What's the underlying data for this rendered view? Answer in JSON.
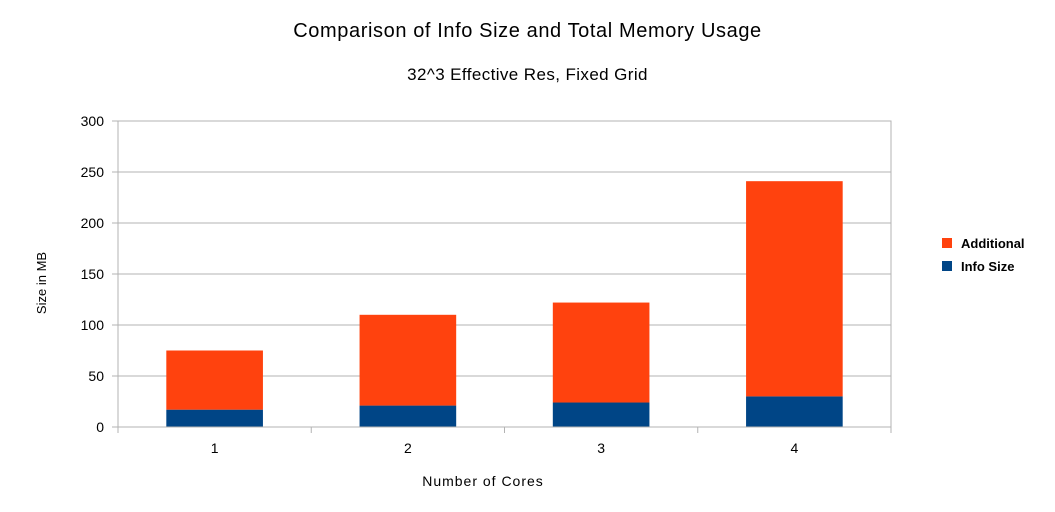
{
  "chart_data": {
    "type": "bar",
    "stacked": true,
    "title": "Comparison of Info Size and Total Memory Usage",
    "subtitle": "32^3 Effective Res, Fixed Grid",
    "xlabel": "Number of Cores",
    "ylabel": "Size in MB",
    "categories": [
      "1",
      "2",
      "3",
      "4"
    ],
    "series": [
      {
        "name": "Info Size",
        "color": "#004586",
        "values": [
          17,
          21,
          24,
          30
        ]
      },
      {
        "name": "Additional",
        "color": "#ff420e",
        "values": [
          58,
          89,
          98,
          211
        ]
      }
    ],
    "ylim": [
      0,
      300
    ],
    "yticks": [
      0,
      50,
      100,
      150,
      200,
      250,
      300
    ],
    "grid": true,
    "legend_position": "right"
  }
}
